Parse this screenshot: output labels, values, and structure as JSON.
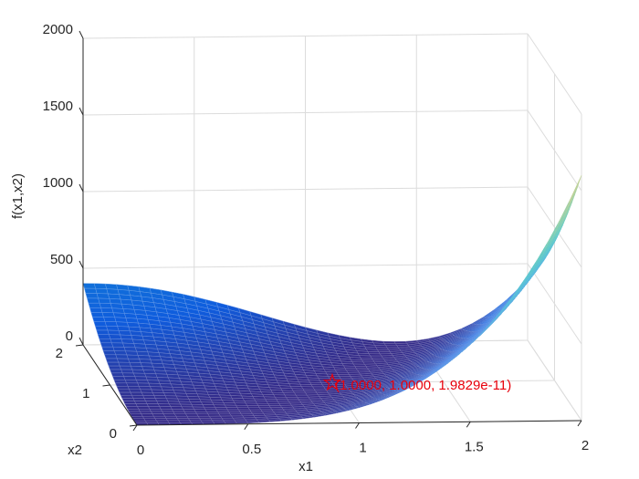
{
  "chart_data": {
    "type": "surface",
    "function_label": "f(x1,x2)",
    "xlabel": "x1",
    "ylabel": "x2",
    "zlabel": "f(x1,x2)",
    "xlim": [
      0,
      2
    ],
    "ylim": [
      0,
      2
    ],
    "zlim": [
      0,
      2000
    ],
    "x_ticks": [
      "0",
      "0.5",
      "1",
      "1.5",
      "2"
    ],
    "y_ticks": [
      "0",
      "1",
      "2"
    ],
    "z_ticks": [
      "0",
      "500",
      "1000",
      "1500",
      "2000"
    ],
    "grid": true,
    "colormap": "parula",
    "minimum_marker": {
      "x": 1,
      "y": 1,
      "z": 0,
      "label": "(1.0000, 1.0000, 1.9829e-11)",
      "color": "#e8000b"
    }
  }
}
